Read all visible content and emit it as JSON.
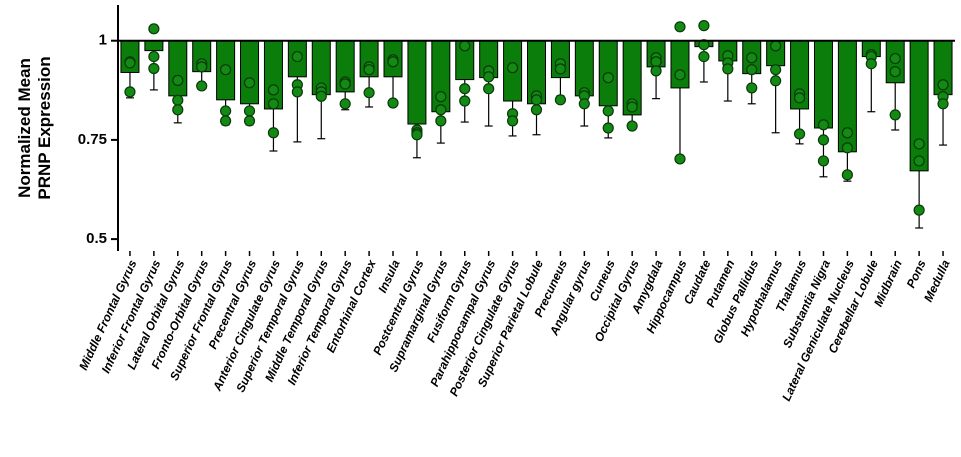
{
  "chart_data": {
    "type": "bar",
    "ylabel": [
      "Normalized Mean",
      "PRNP Expression"
    ],
    "categories": [
      "Middle Frontal Gyrus",
      "Inferior Frontal Gyrus",
      "Lateral Orbital Gyrus",
      "Fronto-Orbital Gyrus",
      "Superior Frontal Gyrus",
      "Precentral Gyrus",
      "Anterior Cingulate Gyrus",
      "Superior Temporal Gyrus",
      "Middle Temporal Gyrus",
      "Inferior Temporal Gyrus",
      "Entorhinal Cortex",
      "Insula",
      "Postcentral Gyrus",
      "Supramarginal Gyrus",
      "Fusiform Gyrus",
      "Parahippocampal Gyrus",
      "Posterior Cingulate Gyrus",
      "Superior Parietal Lobule",
      "Precuneus",
      "Angular gyrus",
      "Cuneus",
      "Occipital Gyrus",
      "Amygdala",
      "Hippocampus",
      "Caudate",
      "Putamen",
      "Globus Pallidus",
      "Hypothalamus",
      "Thalamus",
      "Substantia Nigra",
      "Lateral Geniculate Nucleus",
      "Cerebellar Lobule",
      "Midbrain",
      "Pons",
      "Medulla"
    ],
    "values": [
      0.92,
      0.975,
      0.861,
      0.922,
      0.851,
      0.841,
      0.828,
      0.909,
      0.864,
      0.871,
      0.909,
      0.909,
      0.79,
      0.821,
      0.902,
      0.907,
      0.848,
      0.841,
      0.907,
      0.861,
      0.836,
      0.813,
      0.934,
      0.881,
      0.985,
      0.949,
      0.917,
      0.937,
      0.828,
      0.78,
      0.72,
      0.96,
      0.894,
      0.672,
      0.864
    ],
    "errors": [
      0.064,
      0.099,
      0.068,
      0.038,
      0.063,
      0.053,
      0.106,
      0.164,
      0.111,
      0.045,
      0.076,
      0.068,
      0.085,
      0.079,
      0.107,
      0.122,
      0.088,
      0.078,
      0.046,
      0.076,
      0.081,
      0.03,
      0.08,
      0.176,
      0.089,
      0.101,
      0.076,
      0.169,
      0.088,
      0.123,
      0.074,
      0.139,
      0.119,
      0.144,
      0.127
    ],
    "points": [
      [
        0.947,
        0.944,
        0.871
      ],
      [
        1.03,
        0.96,
        0.93
      ],
      [
        0.9,
        0.85,
        0.826
      ],
      [
        0.942,
        0.934,
        0.886
      ],
      [
        0.927,
        0.823,
        0.798
      ],
      [
        0.894,
        0.823,
        0.798
      ],
      [
        0.876,
        0.841,
        0.768
      ],
      [
        0.96,
        0.889,
        0.871
      ],
      [
        0.881,
        0.871,
        0.86
      ],
      [
        0.896,
        0.891,
        0.841
      ],
      [
        0.934,
        0.927,
        0.869
      ],
      [
        0.952,
        0.947,
        0.843
      ],
      [
        0.775,
        0.768,
        0.763
      ],
      [
        0.859,
        0.826,
        0.798
      ],
      [
        0.987,
        0.879,
        0.848
      ],
      [
        0.924,
        0.909,
        0.879
      ],
      [
        0.932,
        0.816,
        0.798
      ],
      [
        0.861,
        0.851,
        0.826
      ],
      [
        0.942,
        0.929,
        0.851
      ],
      [
        0.869,
        0.861,
        0.841
      ],
      [
        0.907,
        0.823,
        0.78
      ],
      [
        0.841,
        0.833,
        0.785
      ],
      [
        0.957,
        0.947,
        0.924
      ],
      [
        1.035,
        0.914,
        0.702
      ],
      [
        1.038,
        0.99,
        0.96
      ],
      [
        0.962,
        0.944,
        0.929
      ],
      [
        0.957,
        0.927,
        0.881
      ],
      [
        0.987,
        0.927,
        0.899
      ],
      [
        0.866,
        0.856,
        0.765
      ],
      [
        0.788,
        0.75,
        0.697
      ],
      [
        0.768,
        0.73,
        0.662
      ],
      [
        0.965,
        0.96,
        0.942
      ],
      [
        0.955,
        0.922,
        0.813
      ],
      [
        0.74,
        0.697,
        0.573
      ],
      [
        0.889,
        0.859,
        0.841
      ]
    ],
    "color": "#0b7d0b",
    "point_color": "#138a13",
    "baseline": 1,
    "ylim": [
      0.47,
      1.09
    ],
    "yticks": [
      1,
      0.75,
      0.5
    ]
  }
}
